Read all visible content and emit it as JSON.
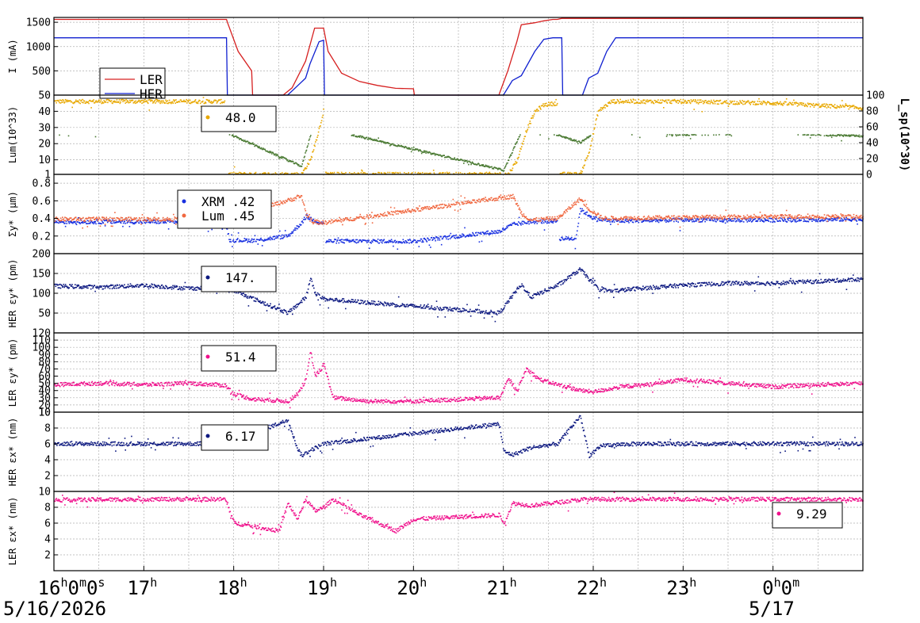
{
  "chart_data": [
    {
      "type": "line",
      "panel": "beam-current",
      "ylabel": "I (mA)",
      "ylim": [
        0,
        1600
      ],
      "yticks": [
        500,
        1000,
        1500
      ],
      "legend": {
        "placement": "bottom-left",
        "entries": [
          "LER",
          "HER"
        ]
      },
      "series": [
        {
          "name": "LER",
          "color": "#d62020",
          "x": [
            16.0,
            17.92,
            17.93,
            18.05,
            18.2,
            18.21,
            18.55,
            18.65,
            18.8,
            18.9,
            19.0,
            19.05,
            19.2,
            19.4,
            19.6,
            19.8,
            20.0,
            20.01,
            20.95,
            21.05,
            21.15,
            21.2,
            21.35,
            21.45,
            21.55,
            21.6,
            21.65,
            21.75,
            21.85,
            22.0,
            23.0,
            24.0,
            25.0
          ],
          "y": [
            1560,
            1560,
            1500,
            900,
            500,
            0,
            0,
            150,
            700,
            1380,
            1380,
            900,
            450,
            280,
            200,
            140,
            130,
            0,
            0,
            500,
            1100,
            1450,
            1490,
            1530,
            1560,
            1560,
            1580,
            1580,
            1580,
            1580,
            1580,
            1580,
            1580
          ]
        },
        {
          "name": "HER",
          "color": "#1020d0",
          "x": [
            16.0,
            17.92,
            17.93,
            18.6,
            18.8,
            18.85,
            18.95,
            19.0,
            19.01,
            21.0,
            21.1,
            21.2,
            21.35,
            21.45,
            21.55,
            21.65,
            21.66,
            21.88,
            21.95,
            22.05,
            22.15,
            22.25,
            23.0,
            24.0,
            25.0
          ],
          "y": [
            1180,
            1180,
            0,
            0,
            350,
            650,
            1100,
            1130,
            0,
            0,
            300,
            400,
            900,
            1150,
            1180,
            1180,
            0,
            0,
            350,
            450,
            900,
            1180,
            1180,
            1180,
            1180
          ]
        }
      ]
    },
    {
      "type": "scatter",
      "panel": "luminosity",
      "ylabel": "Lum(10^33)",
      "ylim": [
        1,
        50
      ],
      "yticks": [
        1,
        10,
        20,
        30,
        40,
        50
      ],
      "y2label": "L_sp(10^30)",
      "y2lim": [
        0,
        100
      ],
      "y2ticks": [
        0,
        20,
        40,
        60,
        80,
        100
      ],
      "legend": {
        "placement": "left",
        "entries": [
          "48.0"
        ]
      },
      "series": [
        {
          "name": "Lum",
          "color": "#e8a800",
          "axis": "left",
          "x": [
            16.0,
            17.0,
            17.9,
            17.92,
            18.75,
            18.85,
            18.95,
            19.0,
            19.01,
            21.05,
            21.15,
            21.25,
            21.35,
            21.45,
            21.6,
            21.62,
            21.85,
            21.95,
            22.05,
            22.2,
            23.0,
            24.0,
            25.0
          ],
          "y": [
            46,
            46,
            46,
            1,
            1,
            10,
            30,
            42,
            1,
            1,
            10,
            28,
            40,
            44,
            45,
            1,
            1,
            15,
            40,
            46,
            46,
            45,
            42
          ]
        },
        {
          "name": "Lsp",
          "color": "#4a7a32",
          "axis": "right",
          "x": [
            16.0,
            17.0,
            17.9,
            18.75,
            18.85,
            18.9,
            19.0,
            21.0,
            21.1,
            21.2,
            21.3,
            21.45,
            21.6,
            21.85,
            21.95,
            22.05,
            22.2,
            23.0,
            24.0,
            25.0
          ],
          "y": [
            52,
            52,
            53,
            10,
            50,
            65,
            58,
            5,
            30,
            55,
            60,
            52,
            50,
            40,
            48,
            60,
            54,
            50,
            52,
            48
          ]
        }
      ]
    },
    {
      "type": "scatter",
      "panel": "beam-size",
      "ylabel": "Σy* (μm)",
      "ylim": [
        0.0,
        0.9
      ],
      "yticks": [
        0.2,
        0.4,
        0.6,
        0.8
      ],
      "legend": {
        "placement": "left",
        "entries": [
          "XRM  .42",
          "Lum  .45"
        ]
      },
      "series": [
        {
          "name": "XRM",
          "color": "#1830e0",
          "x": [
            16.0,
            17.9,
            17.95,
            18.25,
            18.6,
            18.75,
            18.8,
            18.9,
            19.0,
            19.02,
            20.0,
            20.95,
            21.1,
            21.3,
            21.6,
            21.62,
            21.8,
            21.85,
            22.0,
            22.2,
            23.0,
            24.0,
            25.0
          ],
          "y": [
            0.36,
            0.36,
            0.15,
            0.15,
            0.2,
            0.35,
            0.42,
            0.37,
            0.34,
            0.14,
            0.14,
            0.25,
            0.33,
            0.36,
            0.37,
            0.17,
            0.17,
            0.5,
            0.4,
            0.37,
            0.38,
            0.38,
            0.39
          ]
        },
        {
          "name": "Lum",
          "color": "#f06840",
          "x": [
            16.0,
            17.9,
            18.75,
            18.8,
            18.85,
            18.9,
            19.0,
            21.1,
            21.2,
            21.3,
            21.6,
            21.85,
            21.95,
            22.1,
            23.0,
            24.0,
            25.0
          ],
          "y": [
            0.39,
            0.39,
            0.65,
            0.45,
            0.38,
            0.36,
            0.35,
            0.65,
            0.45,
            0.38,
            0.4,
            0.62,
            0.5,
            0.4,
            0.41,
            0.42,
            0.42
          ]
        }
      ]
    },
    {
      "type": "scatter",
      "panel": "her-vertical-emittance",
      "ylabel": "HER εy* (pm)",
      "ylim": [
        0,
        200
      ],
      "yticks": [
        50,
        100,
        150,
        200
      ],
      "legend": {
        "placement": "left",
        "entries": [
          "147."
        ]
      },
      "series": [
        {
          "name": "HER εy*",
          "color": "#0c1880",
          "x": [
            16.0,
            16.5,
            17.0,
            17.5,
            17.9,
            18.6,
            18.7,
            18.8,
            18.85,
            18.9,
            19.0,
            20.95,
            21.05,
            21.15,
            21.2,
            21.3,
            21.45,
            21.6,
            21.85,
            21.95,
            22.05,
            22.2,
            22.5,
            23.0,
            23.5,
            24.0,
            24.5,
            25.0
          ],
          "y": [
            118,
            115,
            120,
            112,
            115,
            50,
            70,
            90,
            140,
            100,
            85,
            50,
            80,
            110,
            120,
            90,
            105,
            120,
            160,
            135,
            110,
            105,
            112,
            120,
            125,
            125,
            130,
            135
          ]
        }
      ]
    },
    {
      "type": "scatter",
      "panel": "ler-vertical-emittance",
      "ylabel": "LER εy* (pm)",
      "ylim": [
        10,
        120
      ],
      "yticks": [
        10,
        20,
        30,
        40,
        50,
        60,
        70,
        80,
        90,
        100,
        110,
        120
      ],
      "legend": {
        "placement": "left",
        "entries": [
          "51.4"
        ]
      },
      "series": [
        {
          "name": "LER εy*",
          "color": "#f0108c",
          "x": [
            16.0,
            16.5,
            17.0,
            17.5,
            17.9,
            18.0,
            18.2,
            18.6,
            18.7,
            18.8,
            18.85,
            18.9,
            19.0,
            19.1,
            19.5,
            20.0,
            20.95,
            21.05,
            21.15,
            21.25,
            21.4,
            21.6,
            21.85,
            22.0,
            22.3,
            22.6,
            23.0,
            23.5,
            24.0,
            24.5,
            25.0
          ],
          "y": [
            48,
            50,
            48,
            50,
            47,
            35,
            28,
            25,
            35,
            55,
            95,
            60,
            75,
            30,
            25,
            25,
            30,
            55,
            40,
            70,
            55,
            48,
            40,
            38,
            45,
            48,
            55,
            50,
            45,
            48,
            50
          ]
        }
      ]
    },
    {
      "type": "scatter",
      "panel": "her-horizontal-emittance",
      "ylabel": "HER εx* (nm)",
      "ylim": [
        0,
        10
      ],
      "yticks": [
        2,
        4,
        6,
        8,
        10
      ],
      "legend": {
        "placement": "left",
        "entries": [
          "6.17"
        ]
      },
      "series": [
        {
          "name": "HER εx*",
          "color": "#0c1880",
          "x": [
            16.0,
            17.0,
            17.9,
            18.6,
            18.7,
            18.75,
            18.85,
            19.0,
            20.95,
            21.0,
            21.1,
            21.3,
            21.6,
            21.85,
            21.95,
            22.1,
            22.5,
            23.0,
            24.0,
            25.0
          ],
          "y": [
            6.0,
            6.0,
            6.0,
            9.0,
            5.5,
            4.5,
            5.2,
            6.0,
            8.5,
            5.0,
            4.6,
            5.5,
            6.0,
            9.5,
            4.5,
            5.8,
            6.0,
            6.0,
            6.0,
            6.0
          ]
        }
      ]
    },
    {
      "type": "scatter",
      "panel": "ler-horizontal-emittance",
      "ylabel": "LER εx* (nm)",
      "ylim": [
        0,
        10
      ],
      "yticks": [
        2,
        4,
        6,
        8,
        10
      ],
      "legend": {
        "placement": "right",
        "entries": [
          "9.29"
        ]
      },
      "series": [
        {
          "name": "LER εx*",
          "color": "#f0108c",
          "x": [
            16.0,
            17.0,
            17.9,
            18.0,
            18.5,
            18.6,
            18.7,
            18.8,
            18.9,
            19.0,
            19.1,
            19.4,
            19.8,
            20.0,
            20.95,
            21.0,
            21.1,
            21.3,
            21.6,
            21.9,
            22.2,
            23.0,
            24.0,
            25.0
          ],
          "y": [
            8.9,
            9.0,
            9.0,
            6.0,
            5.0,
            8.5,
            6.5,
            9.0,
            7.5,
            8.0,
            9.0,
            7.0,
            5.0,
            6.5,
            7.0,
            6.0,
            8.5,
            8.2,
            8.6,
            9.0,
            9.0,
            9.0,
            9.0,
            9.0
          ]
        }
      ]
    }
  ],
  "x_axis": {
    "range": [
      16.0,
      25.0
    ],
    "ticks": [
      {
        "x": 16,
        "h": "16",
        "sup1": "h",
        "m": "0",
        "sup2": "m",
        "s": "0",
        "sup3": "s"
      },
      {
        "x": 17,
        "h": "17",
        "sup1": "h"
      },
      {
        "x": 18,
        "h": "18",
        "sup1": "h"
      },
      {
        "x": 19,
        "h": "19",
        "sup1": "h"
      },
      {
        "x": 20,
        "h": "20",
        "sup1": "h"
      },
      {
        "x": 21,
        "h": "21",
        "sup1": "h"
      },
      {
        "x": 22,
        "h": "22",
        "sup1": "h"
      },
      {
        "x": 23,
        "h": "23",
        "sup1": "h"
      },
      {
        "x": 24,
        "h": "0",
        "sup1": "h",
        "m": "0",
        "sup2": "m"
      }
    ],
    "date_start": "5/16/2026",
    "date_next": "5/17"
  }
}
